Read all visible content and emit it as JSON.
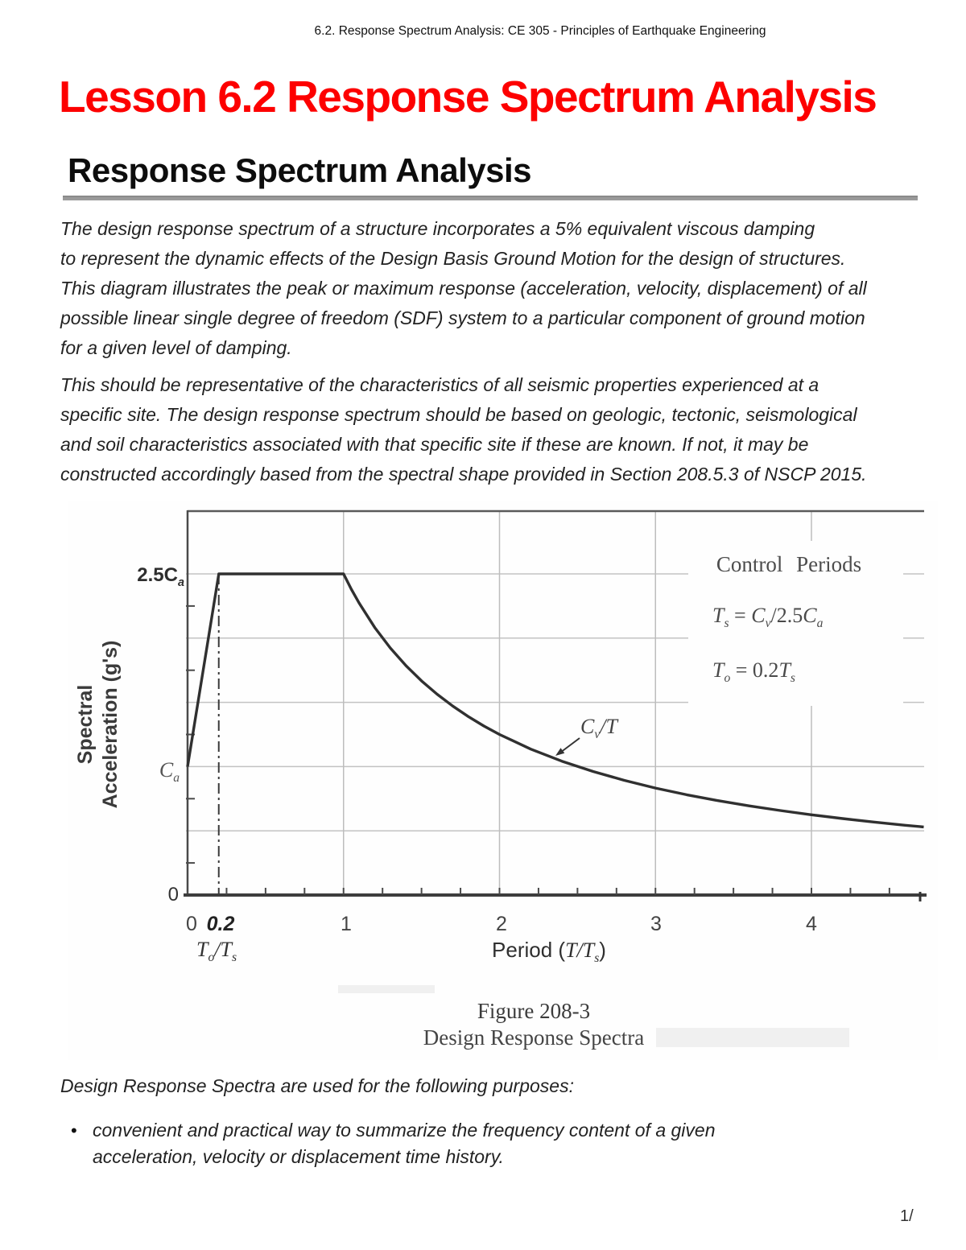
{
  "page": {
    "header": "6.2. Response Spectrum Analysis: CE 305 - Principles of Earthquake Engineering",
    "title": "Lesson 6.2 Response Spectrum Analysis",
    "title_color": "#fd0000",
    "section_heading": "Response Spectrum Analysis",
    "paragraph1": [
      "The design response spectrum of a structure incorporates a 5% equivalent viscous damping",
      "to represent the dynamic effects of the Design Basis Ground Motion for the design of structures.",
      "This diagram illustrates the peak or maximum response (acceleration, velocity, displacement) of all",
      "possible linear single degree of freedom (SDF) system to a particular component of ground motion",
      "for a given level of damping."
    ],
    "paragraph2": [
      "This should be representative of the characteristics of all seismic properties experienced at a",
      "specific site. The design response spectrum should be based on geologic, tectonic, seismological",
      "and soil characteristics associated with that specific site if these are known. If not, it may be",
      "constructed accordingly based from the spectral shape provided in Section 208.5.3 of NSCP 2015."
    ],
    "purpose_intro": "Design Response Spectra are used for the following purposes:",
    "bullet_marker": "•",
    "bullet1": [
      "convenient and practical way to summarize the frequency content of a given",
      "acceleration, velocity or displacement time history."
    ],
    "page_number": "1/"
  },
  "figure": {
    "caption_line1": "Figure 208-3",
    "caption_line2": "Design Response Spectra",
    "ylabel_line1": "Spectral",
    "ylabel_line2": "Acceleration (g's)",
    "labels": {
      "y_25ca": {
        "p0": "2.5C",
        "p1": "a"
      },
      "y_ca": {
        "p0": "C",
        "p1": "a"
      },
      "to_ts": {
        "p0": "T",
        "p1": "o",
        "p2": "/T",
        "p3": "s"
      },
      "xlabel": {
        "p0": "Period (",
        "p1": "T",
        "p2": "/T",
        "p3": "s",
        "p4": ")"
      },
      "cv_t": {
        "p0": "C",
        "p1": "v",
        "p2": "/T"
      },
      "control_title": "Control Periods",
      "eq_ts": {
        "p0": "T",
        "p1": "s",
        "p2": " = ",
        "p3": "C",
        "p4": "v",
        "p5": "/2.5",
        "p6": "C",
        "p7": "a"
      },
      "eq_to": {
        "p0": "T",
        "p1": "o",
        "p2": " = 0.2",
        "p3": "T",
        "p4": "s"
      }
    }
  },
  "chart_data": {
    "type": "line",
    "title": "Design Response Spectra",
    "figure_number": "Figure 208-3",
    "xlabel": "Period (T/Ts)",
    "ylabel": "Spectral Acceleration (g's)",
    "xlim": [
      0,
      4.72
    ],
    "ylim": [
      0,
      3
    ],
    "grid": true,
    "legend": false,
    "x_tick_labels": [
      "0",
      "0.2",
      "1",
      "2",
      "3",
      "4"
    ],
    "x_tick_values": [
      0,
      0.2,
      1,
      2,
      3,
      4
    ],
    "y_tick_labels": [
      "0",
      "Ca",
      "2.5Ca"
    ],
    "y_tick_values": [
      0,
      1,
      2.5
    ],
    "x_gridlines": [
      1,
      2,
      3,
      4
    ],
    "y_gridlines": [
      0.5,
      1,
      1.5,
      2,
      2.5
    ],
    "reference_line_x": 0.2,
    "annotations": [
      "Control Periods",
      "Ts = Cv/2.5Ca",
      "To = 0.2Ts",
      "Cv/T",
      "To/Ts"
    ],
    "series": [
      {
        "name": "design-response-spectrum",
        "points": [
          [
            0,
            1
          ],
          [
            0.2,
            2.5
          ],
          [
            1,
            2.5
          ],
          [
            1.05,
            2.381
          ],
          [
            1.1,
            2.273
          ],
          [
            1.2,
            2.083
          ],
          [
            1.3,
            1.923
          ],
          [
            1.4,
            1.786
          ],
          [
            1.5,
            1.667
          ],
          [
            1.6,
            1.563
          ],
          [
            1.7,
            1.471
          ],
          [
            1.8,
            1.389
          ],
          [
            1.9,
            1.316
          ],
          [
            2,
            1.25
          ],
          [
            2.2,
            1.136
          ],
          [
            2.4,
            1.042
          ],
          [
            2.6,
            0.962
          ],
          [
            2.8,
            0.893
          ],
          [
            3,
            0.833
          ],
          [
            3.2,
            0.781
          ],
          [
            3.4,
            0.735
          ],
          [
            3.6,
            0.694
          ],
          [
            3.8,
            0.658
          ],
          [
            4,
            0.625
          ],
          [
            4.2,
            0.595
          ],
          [
            4.4,
            0.568
          ],
          [
            4.6,
            0.543
          ],
          [
            4.72,
            0.53
          ]
        ]
      }
    ]
  }
}
